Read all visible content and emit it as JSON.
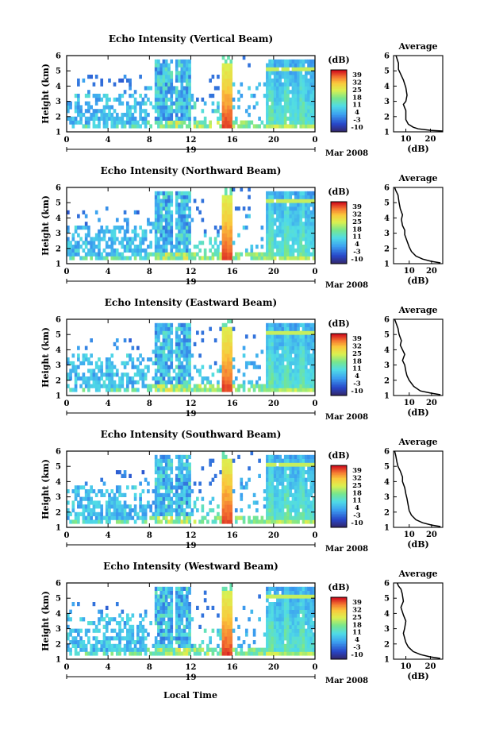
{
  "chart_data": [
    {
      "type": "heatmap",
      "title": "Echo Intensity (Vertical Beam)",
      "ylabel": "Height (km)",
      "ylim": [
        1,
        6
      ],
      "y_ticks": [
        "1",
        "2",
        "3",
        "4",
        "5",
        "6"
      ],
      "x_ticks": [
        "0",
        "4",
        "8",
        "12",
        "16",
        "20",
        "0"
      ],
      "xlim": [
        0,
        24
      ],
      "day_label": "19",
      "date_label": "Mar 2008",
      "colorbar": {
        "unit": "(dB)",
        "ticks": [
          "39",
          "32",
          "25",
          "18",
          "11",
          "4",
          "-3",
          "-10"
        ],
        "range": [
          -10,
          39
        ]
      },
      "average": {
        "title": "Average",
        "xlabel": "(dB)",
        "x_ticks": [
          "10",
          "20"
        ],
        "xlim": [
          5,
          25
        ],
        "y_ticks": [
          "1",
          "2",
          "3",
          "4",
          "5",
          "6"
        ],
        "x": [
          25,
          20,
          15,
          13,
          11,
          10,
          10,
          10,
          9.5,
          9,
          10,
          10.5,
          10,
          9,
          7,
          7,
          6
        ],
        "y": [
          1.05,
          1.1,
          1.2,
          1.3,
          1.5,
          1.8,
          2.0,
          2.4,
          2.6,
          2.8,
          3.0,
          3.4,
          3.9,
          4.4,
          5.1,
          5.5,
          6.0
        ]
      }
    },
    {
      "type": "heatmap",
      "title": "Echo Intensity (Northward Beam)",
      "ylabel": "Height (km)",
      "ylim": [
        1,
        6
      ],
      "y_ticks": [
        "1",
        "2",
        "3",
        "4",
        "5",
        "6"
      ],
      "x_ticks": [
        "0",
        "4",
        "8",
        "12",
        "16",
        "20",
        "0"
      ],
      "xlim": [
        0,
        24
      ],
      "day_label": "19",
      "date_label": "Mar 2008",
      "colorbar": {
        "unit": "(dB)",
        "ticks": [
          "39",
          "32",
          "25",
          "18",
          "11",
          "4",
          "-3",
          "-10"
        ],
        "range": [
          -10,
          39
        ]
      },
      "average": {
        "title": "Average",
        "xlabel": "(dB)",
        "x_ticks": [
          "10",
          "20"
        ],
        "xlim": [
          3,
          25
        ],
        "y_ticks": [
          "1",
          "2",
          "3",
          "4",
          "5",
          "6"
        ],
        "x": [
          24,
          20,
          16,
          13,
          11,
          10,
          9,
          8,
          8,
          7,
          6.5,
          7,
          6,
          5.5,
          5,
          4,
          3.5
        ],
        "y": [
          1.05,
          1.15,
          1.3,
          1.5,
          1.8,
          2.1,
          2.5,
          2.9,
          3.2,
          3.5,
          3.9,
          4.2,
          4.6,
          5.0,
          5.5,
          5.8,
          6.0
        ]
      }
    },
    {
      "type": "heatmap",
      "title": "Echo Intensity (Eastward Beam)",
      "ylabel": "Height (km)",
      "ylim": [
        1,
        6
      ],
      "y_ticks": [
        "1",
        "2",
        "3",
        "4",
        "5",
        "6"
      ],
      "x_ticks": [
        "0",
        "4",
        "8",
        "12",
        "16",
        "20",
        "0"
      ],
      "xlim": [
        0,
        24
      ],
      "day_label": "19",
      "date_label": "Mar 2008",
      "colorbar": {
        "unit": "(dB)",
        "ticks": [
          "39",
          "32",
          "25",
          "18",
          "11",
          "4",
          "-3",
          "-10"
        ],
        "range": [
          -10,
          39
        ]
      },
      "average": {
        "title": "Average",
        "xlabel": "(dB)",
        "x_ticks": [
          "10",
          "20"
        ],
        "xlim": [
          3,
          25
        ],
        "y_ticks": [
          "1",
          "2",
          "3",
          "4",
          "5",
          "6"
        ],
        "x": [
          24,
          20,
          15,
          12,
          10,
          9,
          8.5,
          8,
          7,
          8,
          7,
          6,
          6.5,
          5.5,
          5,
          4,
          3.5
        ],
        "y": [
          1.05,
          1.15,
          1.3,
          1.6,
          2.0,
          2.3,
          2.6,
          3.0,
          3.3,
          3.7,
          4.0,
          4.3,
          4.6,
          5.0,
          5.4,
          5.8,
          6.0
        ]
      }
    },
    {
      "type": "heatmap",
      "title": "Echo Intensity (Southward Beam)",
      "ylabel": "Height (km)",
      "ylim": [
        1,
        6
      ],
      "y_ticks": [
        "1",
        "2",
        "3",
        "4",
        "5",
        "6"
      ],
      "x_ticks": [
        "0",
        "4",
        "8",
        "12",
        "16",
        "20",
        "0"
      ],
      "xlim": [
        0,
        24
      ],
      "day_label": "19",
      "date_label": "Mar 2008",
      "colorbar": {
        "unit": "(dB)",
        "ticks": [
          "39",
          "32",
          "25",
          "18",
          "11",
          "4",
          "-3",
          "-10"
        ],
        "range": [
          -10,
          39
        ]
      },
      "average": {
        "title": "Average",
        "xlabel": "(dB)",
        "x_ticks": [
          "10",
          "20"
        ],
        "xlim": [
          3,
          25
        ],
        "y_ticks": [
          "1",
          "2",
          "3",
          "4",
          "5",
          "6"
        ],
        "x": [
          24,
          20,
          16,
          13,
          11,
          10,
          9.5,
          9,
          8.5,
          8,
          7,
          7,
          6,
          5,
          4.5,
          4,
          3.5
        ],
        "y": [
          1.05,
          1.15,
          1.3,
          1.5,
          1.8,
          2.1,
          2.5,
          2.9,
          3.2,
          3.6,
          4.0,
          4.3,
          4.7,
          5.0,
          5.3,
          5.7,
          6.0
        ]
      }
    },
    {
      "type": "heatmap",
      "title": "Echo Intensity (Westward Beam)",
      "ylabel": "Height (km)",
      "ylim": [
        1,
        6
      ],
      "y_ticks": [
        "1",
        "2",
        "3",
        "4",
        "5",
        "6"
      ],
      "x_ticks": [
        "0",
        "4",
        "8",
        "12",
        "16",
        "20",
        "0"
      ],
      "xlim": [
        0,
        24
      ],
      "day_label": "19",
      "date_label": "Mar 2008",
      "colorbar": {
        "unit": "(dB)",
        "ticks": [
          "39",
          "32",
          "25",
          "18",
          "11",
          "4",
          "-3",
          "-10"
        ],
        "range": [
          -10,
          39
        ]
      },
      "average": {
        "title": "Average",
        "xlabel": "(dB)",
        "x_ticks": [
          "10",
          "20"
        ],
        "xlim": [
          5,
          25
        ],
        "y_ticks": [
          "1",
          "2",
          "3",
          "4",
          "5",
          "6"
        ],
        "x": [
          24,
          20,
          16,
          13,
          11,
          10,
          9.5,
          9,
          9.5,
          10,
          9,
          8,
          9,
          8.5,
          8,
          7,
          6.5
        ],
        "y": [
          1.05,
          1.15,
          1.3,
          1.5,
          1.8,
          2.1,
          2.4,
          2.7,
          3.0,
          3.5,
          3.9,
          4.4,
          4.8,
          5.3,
          5.6,
          5.8,
          6.0
        ]
      }
    }
  ],
  "footer": {
    "xlabel": "Local Time"
  }
}
